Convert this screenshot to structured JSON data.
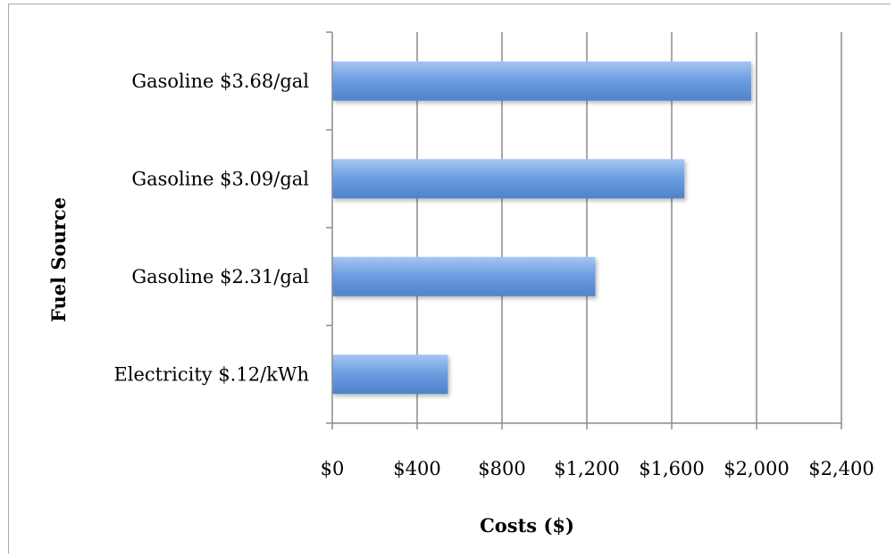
{
  "chart_data": {
    "type": "bar",
    "orientation": "horizontal",
    "categories": [
      "Electricity $.12/kWh",
      "Gasoline $2.31/gal",
      "Gasoline $3.09/gal",
      "Gasoline $3.68/gal"
    ],
    "values": [
      545,
      1240,
      1660,
      1975
    ],
    "xlabel": "Costs ($)",
    "ylabel": "Fuel Source",
    "xlim": [
      0,
      2400
    ],
    "xticks": [
      0,
      400,
      800,
      1200,
      1600,
      2000,
      2400
    ],
    "xtick_labels": [
      "$0",
      "$400",
      "$800",
      "$1,200",
      "$1,600",
      "$2,000",
      "$2,400"
    ],
    "grid": "vertical",
    "legend": "none",
    "bar_color": "#5f94d9"
  }
}
